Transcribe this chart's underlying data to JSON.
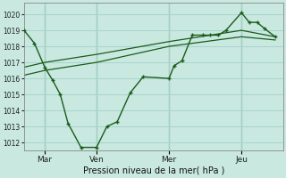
{
  "bg_color": "#c8e8e0",
  "grid_color": "#a8d4cc",
  "line_color": "#1a5c1a",
  "xlabel": "Pression niveau de la mer( hPa )",
  "ylim": [
    1011.5,
    1020.7
  ],
  "yticks": [
    1012,
    1013,
    1014,
    1015,
    1016,
    1017,
    1018,
    1019,
    1020
  ],
  "xtick_labels": [
    "Mar",
    "Ven",
    "Mer",
    "Jeu"
  ],
  "xtick_positions": [
    8,
    28,
    56,
    84
  ],
  "total_points": 100,
  "line1_x": [
    0,
    4,
    8,
    11,
    14,
    17,
    22,
    28,
    32,
    36,
    41,
    46,
    56,
    58,
    61,
    65,
    69,
    72,
    75,
    78,
    84,
    87,
    90,
    93,
    97
  ],
  "line1_y": [
    1019.0,
    1018.2,
    1016.7,
    1015.9,
    1015.0,
    1013.2,
    1011.7,
    1011.7,
    1013.0,
    1013.3,
    1015.1,
    1016.1,
    1016.0,
    1016.8,
    1017.1,
    1018.7,
    1018.7,
    1018.7,
    1018.7,
    1019.0,
    1020.1,
    1019.5,
    1019.5,
    1019.1,
    1018.6
  ],
  "line2_x": [
    0,
    8,
    28,
    56,
    84,
    97
  ],
  "line2_y": [
    1016.7,
    1017.0,
    1017.5,
    1018.3,
    1019.0,
    1018.6
  ],
  "line3_x": [
    0,
    8,
    28,
    56,
    84,
    97
  ],
  "line3_y": [
    1016.2,
    1016.5,
    1017.0,
    1018.0,
    1018.6,
    1018.4
  ],
  "vline_positions": [
    8,
    28,
    56,
    84
  ]
}
